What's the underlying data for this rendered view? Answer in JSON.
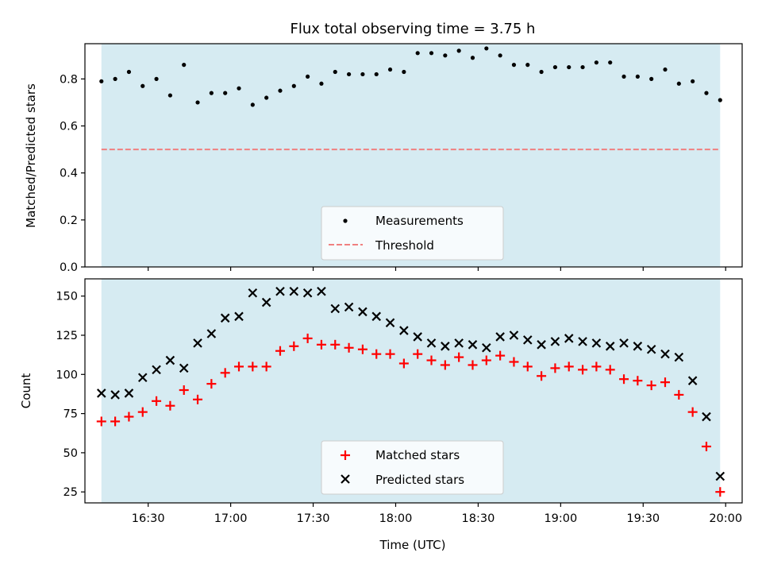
{
  "chart_data": [
    {
      "type": "scatter",
      "title": "Flux total observing time = 3.75 h",
      "ylabel": "Matched/Predicted stars",
      "xlabel": "",
      "x_range": [
        "16:07",
        "20:06"
      ],
      "ylim": [
        0,
        0.95
      ],
      "yticks": [
        "0.0",
        "0.2",
        "0.4",
        "0.6",
        "0.8"
      ],
      "shaded_span": [
        "16:13",
        "19:58"
      ],
      "shade_color": "#add8e6",
      "grid": false,
      "legend_placement": "lower center",
      "threshold": {
        "name": "Threshold",
        "value": 0.5,
        "color": "#f08080",
        "style": "dashed"
      },
      "series": [
        {
          "name": "Measurements",
          "marker": "dot",
          "color": "#000000",
          "points": [
            [
              "16:13",
              0.79
            ],
            [
              "16:18",
              0.8
            ],
            [
              "16:23",
              0.83
            ],
            [
              "16:28",
              0.77
            ],
            [
              "16:33",
              0.8
            ],
            [
              "16:38",
              0.73
            ],
            [
              "16:43",
              0.86
            ],
            [
              "16:48",
              0.7
            ],
            [
              "16:53",
              0.74
            ],
            [
              "16:58",
              0.74
            ],
            [
              "17:03",
              0.76
            ],
            [
              "17:08",
              0.69
            ],
            [
              "17:13",
              0.72
            ],
            [
              "17:18",
              0.75
            ],
            [
              "17:23",
              0.77
            ],
            [
              "17:28",
              0.81
            ],
            [
              "17:33",
              0.78
            ],
            [
              "17:38",
              0.83
            ],
            [
              "17:43",
              0.82
            ],
            [
              "17:48",
              0.82
            ],
            [
              "17:53",
              0.82
            ],
            [
              "17:58",
              0.84
            ],
            [
              "18:03",
              0.83
            ],
            [
              "18:08",
              0.91
            ],
            [
              "18:13",
              0.91
            ],
            [
              "18:18",
              0.9
            ],
            [
              "18:23",
              0.92
            ],
            [
              "18:28",
              0.89
            ],
            [
              "18:33",
              0.93
            ],
            [
              "18:38",
              0.9
            ],
            [
              "18:43",
              0.86
            ],
            [
              "18:48",
              0.86
            ],
            [
              "18:53",
              0.83
            ],
            [
              "18:58",
              0.85
            ],
            [
              "19:03",
              0.85
            ],
            [
              "19:08",
              0.85
            ],
            [
              "19:13",
              0.87
            ],
            [
              "19:18",
              0.87
            ],
            [
              "19:23",
              0.81
            ],
            [
              "19:28",
              0.81
            ],
            [
              "19:33",
              0.8
            ],
            [
              "19:38",
              0.84
            ],
            [
              "19:43",
              0.78
            ],
            [
              "19:48",
              0.79
            ],
            [
              "19:53",
              0.74
            ],
            [
              "19:58",
              0.71
            ]
          ]
        }
      ]
    },
    {
      "type": "scatter",
      "title": "",
      "ylabel": "Count",
      "xlabel": "Time (UTC)",
      "x_range": [
        "16:07",
        "20:06"
      ],
      "xticks": [
        "16:30",
        "17:00",
        "17:30",
        "18:00",
        "18:30",
        "19:00",
        "19:30",
        "20:00"
      ],
      "ylim": [
        18,
        161
      ],
      "yticks": [
        "25",
        "50",
        "75",
        "100",
        "125",
        "150"
      ],
      "shaded_span": [
        "16:13",
        "19:58"
      ],
      "shade_color": "#add8e6",
      "grid": false,
      "legend_placement": "lower center",
      "series": [
        {
          "name": "Matched stars",
          "marker": "plus",
          "color": "#ff0000",
          "points": [
            [
              "16:13",
              70
            ],
            [
              "16:18",
              70
            ],
            [
              "16:23",
              73
            ],
            [
              "16:28",
              76
            ],
            [
              "16:33",
              83
            ],
            [
              "16:38",
              80
            ],
            [
              "16:43",
              90
            ],
            [
              "16:48",
              84
            ],
            [
              "16:53",
              94
            ],
            [
              "16:58",
              101
            ],
            [
              "17:03",
              105
            ],
            [
              "17:08",
              105
            ],
            [
              "17:13",
              105
            ],
            [
              "17:18",
              115
            ],
            [
              "17:23",
              118
            ],
            [
              "17:28",
              123
            ],
            [
              "17:33",
              119
            ],
            [
              "17:38",
              119
            ],
            [
              "17:43",
              117
            ],
            [
              "17:48",
              116
            ],
            [
              "17:53",
              113
            ],
            [
              "17:58",
              113
            ],
            [
              "18:03",
              107
            ],
            [
              "18:08",
              113
            ],
            [
              "18:13",
              109
            ],
            [
              "18:18",
              106
            ],
            [
              "18:23",
              111
            ],
            [
              "18:28",
              106
            ],
            [
              "18:33",
              109
            ],
            [
              "18:38",
              112
            ],
            [
              "18:43",
              108
            ],
            [
              "18:48",
              105
            ],
            [
              "18:53",
              99
            ],
            [
              "18:58",
              104
            ],
            [
              "19:03",
              105
            ],
            [
              "19:08",
              103
            ],
            [
              "19:13",
              105
            ],
            [
              "19:18",
              103
            ],
            [
              "19:23",
              97
            ],
            [
              "19:28",
              96
            ],
            [
              "19:33",
              93
            ],
            [
              "19:38",
              95
            ],
            [
              "19:43",
              87
            ],
            [
              "19:48",
              76
            ],
            [
              "19:53",
              54
            ],
            [
              "19:58",
              25
            ]
          ]
        },
        {
          "name": "Predicted stars",
          "marker": "x",
          "color": "#000000",
          "points": [
            [
              "16:13",
              88
            ],
            [
              "16:18",
              87
            ],
            [
              "16:23",
              88
            ],
            [
              "16:28",
              98
            ],
            [
              "16:33",
              103
            ],
            [
              "16:38",
              109
            ],
            [
              "16:43",
              104
            ],
            [
              "16:48",
              120
            ],
            [
              "16:53",
              126
            ],
            [
              "16:58",
              136
            ],
            [
              "17:03",
              137
            ],
            [
              "17:08",
              152
            ],
            [
              "17:13",
              146
            ],
            [
              "17:18",
              153
            ],
            [
              "17:23",
              153
            ],
            [
              "17:28",
              152
            ],
            [
              "17:33",
              153
            ],
            [
              "17:38",
              142
            ],
            [
              "17:43",
              143
            ],
            [
              "17:48",
              140
            ],
            [
              "17:53",
              137
            ],
            [
              "17:58",
              133
            ],
            [
              "18:03",
              128
            ],
            [
              "18:08",
              124
            ],
            [
              "18:13",
              120
            ],
            [
              "18:18",
              118
            ],
            [
              "18:23",
              120
            ],
            [
              "18:28",
              119
            ],
            [
              "18:33",
              117
            ],
            [
              "18:38",
              124
            ],
            [
              "18:43",
              125
            ],
            [
              "18:48",
              122
            ],
            [
              "18:53",
              119
            ],
            [
              "18:58",
              121
            ],
            [
              "19:03",
              123
            ],
            [
              "19:08",
              121
            ],
            [
              "19:13",
              120
            ],
            [
              "19:18",
              118
            ],
            [
              "19:23",
              120
            ],
            [
              "19:28",
              118
            ],
            [
              "19:33",
              116
            ],
            [
              "19:38",
              113
            ],
            [
              "19:43",
              111
            ],
            [
              "19:48",
              96
            ],
            [
              "19:53",
              73
            ],
            [
              "19:58",
              35
            ]
          ]
        }
      ]
    }
  ]
}
